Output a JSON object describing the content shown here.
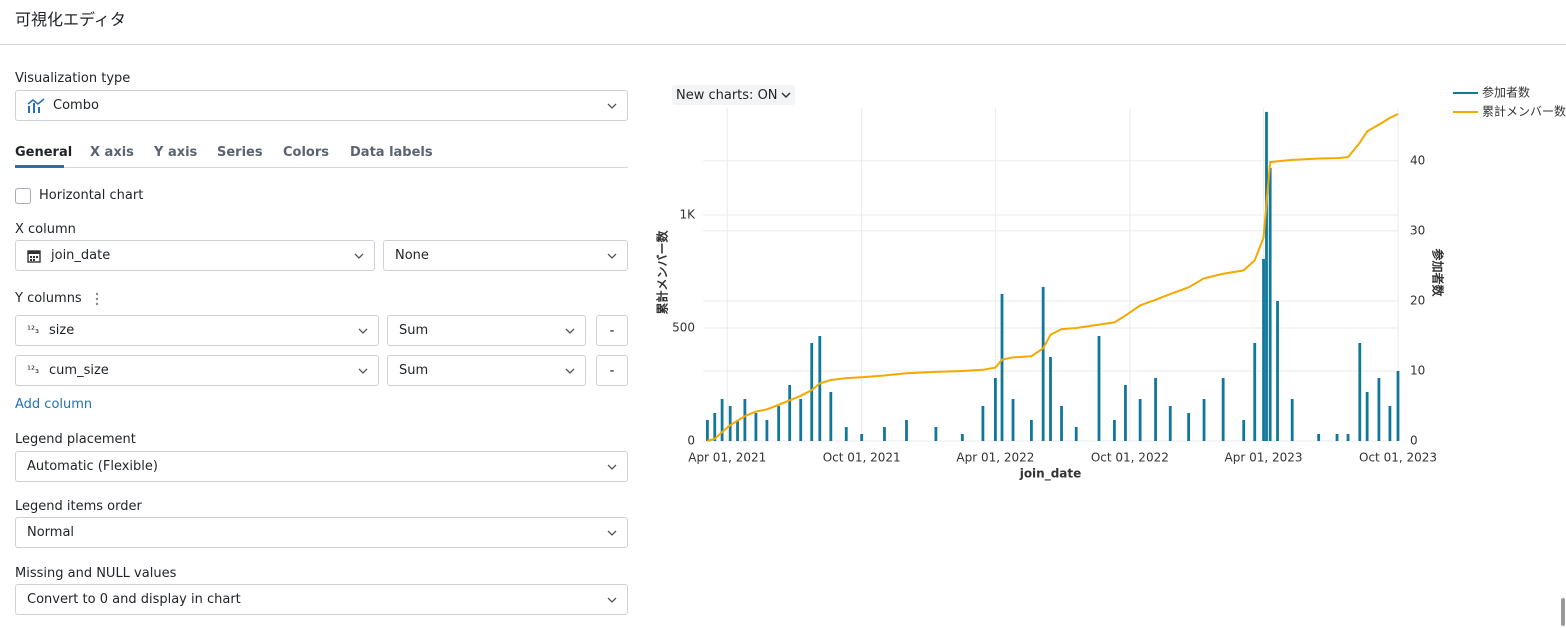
{
  "header": {
    "title": "可視化エディタ"
  },
  "editor": {
    "viz_type_label": "Visualization type",
    "viz_type": "Combo",
    "tabs": [
      "General",
      "X axis",
      "Y axis",
      "Series",
      "Colors",
      "Data labels"
    ],
    "horizontal_chart": "Horizontal chart",
    "x_column_label": "X column",
    "x_column": "join_date",
    "x_scale": "None",
    "y_columns_label": "Y columns",
    "y_columns": [
      {
        "type_icon": "¹²₃",
        "name": "size",
        "agg": "Sum",
        "remove": "-"
      },
      {
        "type_icon": "¹²₃",
        "name": "cum_size",
        "agg": "Sum",
        "remove": "-"
      }
    ],
    "add_column": "Add column",
    "legend_placement_label": "Legend placement",
    "legend_placement": "Automatic (Flexible)",
    "legend_order_label": "Legend items order",
    "legend_order": "Normal",
    "missing_label": "Missing and NULL values",
    "missing": "Convert to 0 and display in chart"
  },
  "new_charts_toggle": "New charts: ON",
  "chart_data": {
    "type": "combo",
    "x_label": "join_date",
    "y_label": "累計メンバー数",
    "y2_label": "参加者数",
    "x": [
      "2021-03-05",
      "2021-03-15",
      "2021-03-25",
      "2021-04-05",
      "2021-04-15",
      "2021-04-25",
      "2021-05-10",
      "2021-05-25",
      "2021-06-10",
      "2021-06-25",
      "2021-07-10",
      "2021-07-25",
      "2021-08-05",
      "2021-08-20",
      "2021-09-10",
      "2021-10-01",
      "2021-11-01",
      "2021-12-01",
      "2022-01-10",
      "2022-02-15",
      "2022-03-15",
      "2022-04-01",
      "2022-04-10",
      "2022-04-25",
      "2022-05-20",
      "2022-06-05",
      "2022-06-15",
      "2022-06-30",
      "2022-07-20",
      "2022-08-20",
      "2022-09-10",
      "2022-09-25",
      "2022-10-15",
      "2022-11-05",
      "2022-11-25",
      "2022-12-20",
      "2023-01-10",
      "2023-02-05",
      "2023-03-05",
      "2023-03-20",
      "2023-04-01",
      "2023-04-05",
      "2023-04-10",
      "2023-04-20",
      "2023-05-10",
      "2023-06-15",
      "2023-07-10",
      "2023-07-25",
      "2023-08-10",
      "2023-08-20",
      "2023-09-05",
      "2023-09-20",
      "2023-10-01"
    ],
    "series": [
      {
        "name": "参加者数",
        "chart": "bar",
        "axis": "y2",
        "color": "#12789a",
        "values": [
          3,
          4,
          6,
          5,
          3,
          6,
          4,
          3,
          5,
          8,
          6,
          14,
          15,
          7,
          2,
          1,
          2,
          3,
          2,
          1,
          5,
          9,
          21,
          6,
          3,
          22,
          12,
          5,
          2,
          15,
          3,
          8,
          6,
          9,
          5,
          4,
          6,
          9,
          3,
          14,
          26,
          47,
          39,
          20,
          6,
          1,
          1,
          1,
          14,
          7,
          9,
          5,
          10
        ]
      },
      {
        "name": "累計メンバー数",
        "chart": "line",
        "axis": "y",
        "color": "#f5a800",
        "values": [
          0,
          10,
          40,
          70,
          90,
          110,
          130,
          140,
          160,
          180,
          200,
          225,
          255,
          270,
          278,
          282,
          290,
          300,
          306,
          310,
          315,
          325,
          360,
          370,
          375,
          410,
          470,
          495,
          500,
          515,
          525,
          555,
          600,
          625,
          650,
          680,
          720,
          740,
          755,
          800,
          900,
          1050,
          1234,
          1238,
          1244,
          1250,
          1252,
          1256,
          1320,
          1370,
          1400,
          1430,
          1447
        ]
      }
    ],
    "xlim": [
      "2021-02-27",
      "2023-10-01"
    ],
    "xticks": [
      {
        "value": "2021-04-01",
        "label": "Apr 01, 2021"
      },
      {
        "value": "2021-10-01",
        "label": "Oct 01, 2021"
      },
      {
        "value": "2022-04-01",
        "label": "Apr 01, 2022"
      },
      {
        "value": "2022-10-01",
        "label": "Oct 01, 2022"
      },
      {
        "value": "2023-04-01",
        "label": "Apr 01, 2023"
      },
      {
        "value": "2023-10-01",
        "label": "Oct 01, 2023"
      }
    ],
    "ylim": [
      0,
      1447
    ],
    "yticks": [
      0,
      500,
      {
        "value": 1000,
        "label": "1K"
      }
    ],
    "y2lim": [
      0,
      46.7
    ],
    "y2ticks": [
      0,
      10,
      20,
      30,
      40
    ],
    "grid": true,
    "legend": "top-right"
  }
}
